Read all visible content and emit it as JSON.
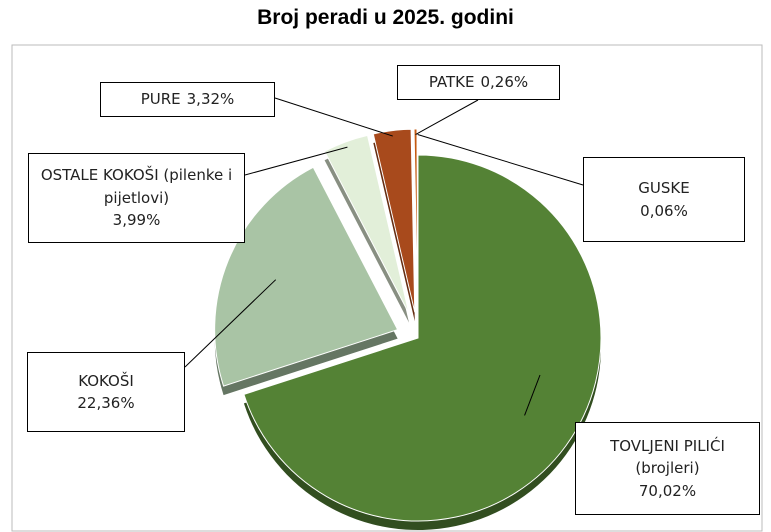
{
  "chart_data": {
    "type": "pie",
    "title": "Broj peradi u 2025. godini",
    "categories": [
      "TOVLJENI PILIĆI (brojleri)",
      "KOKOŠI",
      "OSTALE KOKOŠI (pilenke i pijetlovi)",
      "PURE",
      "PATKE",
      "GUSKE"
    ],
    "values": [
      70.02,
      22.36,
      3.99,
      3.32,
      0.26,
      0.06
    ],
    "value_labels": [
      "70,02%",
      "22,36%",
      "3,99%",
      "3,32%",
      "0,26%",
      "0,06%"
    ],
    "colors": [
      "#548235",
      "#a9c4a5",
      "#e2efd9",
      "#a84a1c",
      "#c55a11",
      "#6f9a4c"
    ]
  }
}
